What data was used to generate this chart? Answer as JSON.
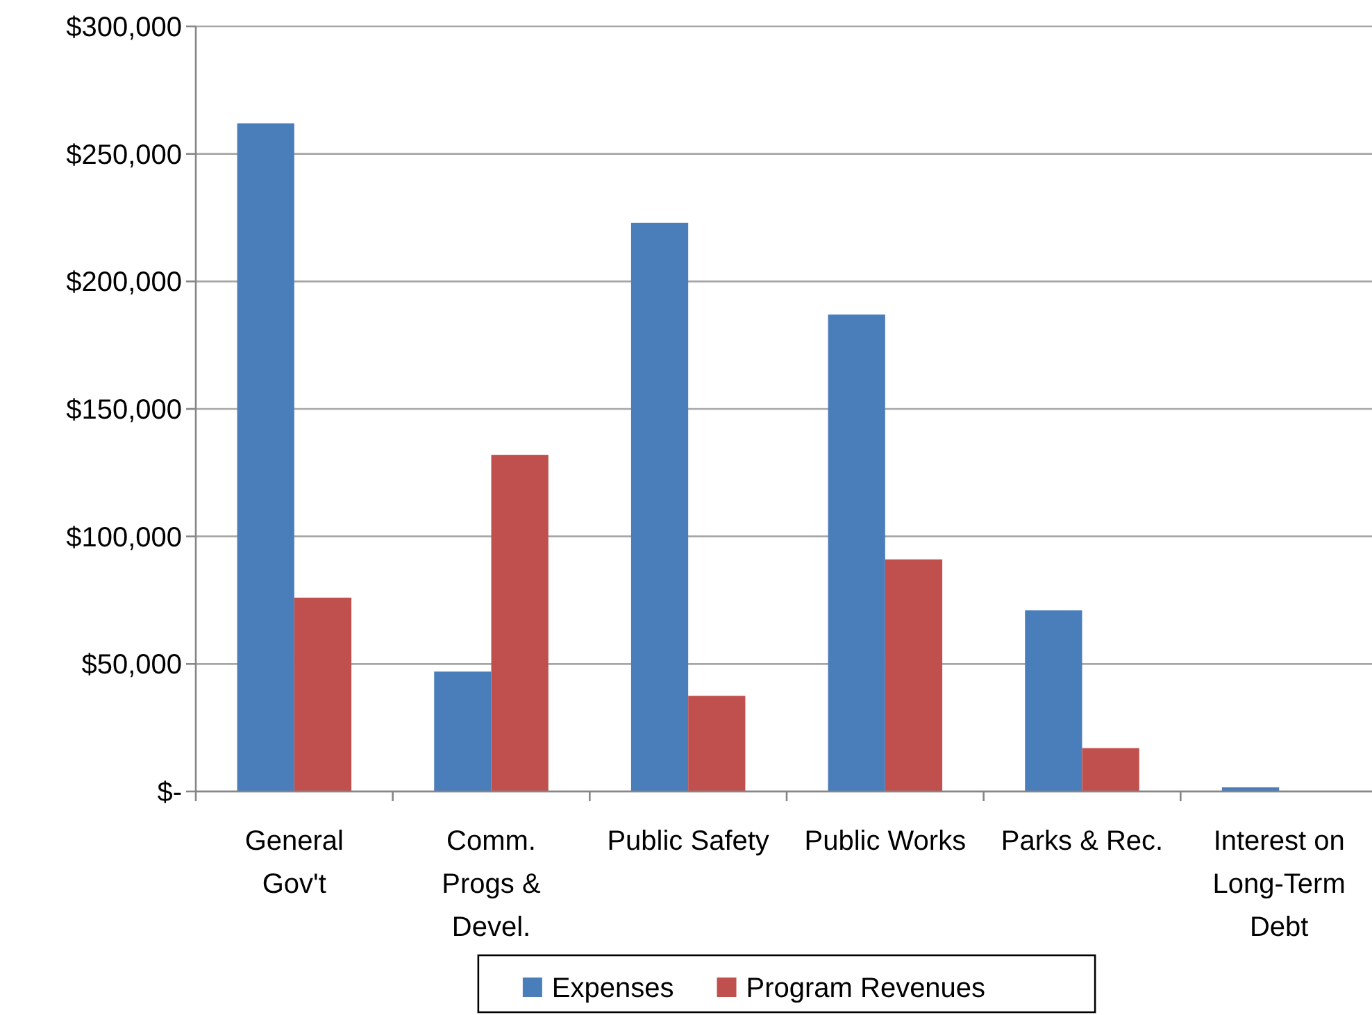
{
  "chart_data": {
    "type": "bar",
    "categories": [
      "General Gov't",
      "Comm. Progs & Devel.",
      "Public Safety",
      "Public Works",
      "Parks & Rec.",
      "Interest on Long-Term Debt"
    ],
    "series": [
      {
        "name": "Expenses",
        "color": "#4a7ebb",
        "values": [
          262000,
          47000,
          223000,
          187000,
          71000,
          1600
        ]
      },
      {
        "name": "Program Revenues",
        "color": "#c0504d",
        "values": [
          76000,
          132000,
          37500,
          91000,
          17000,
          0
        ]
      }
    ],
    "ylim": [
      0,
      300000
    ],
    "yticks": [
      {
        "value": 0,
        "label": "$-"
      },
      {
        "value": 50000,
        "label": "$50,000"
      },
      {
        "value": 100000,
        "label": "$100,000"
      },
      {
        "value": 150000,
        "label": "$150,000"
      },
      {
        "value": 200000,
        "label": "$200,000"
      },
      {
        "value": 250000,
        "label": "$250,000"
      },
      {
        "value": 300000,
        "label": "$300,000"
      }
    ],
    "grid": "y",
    "legend": "bottom"
  }
}
